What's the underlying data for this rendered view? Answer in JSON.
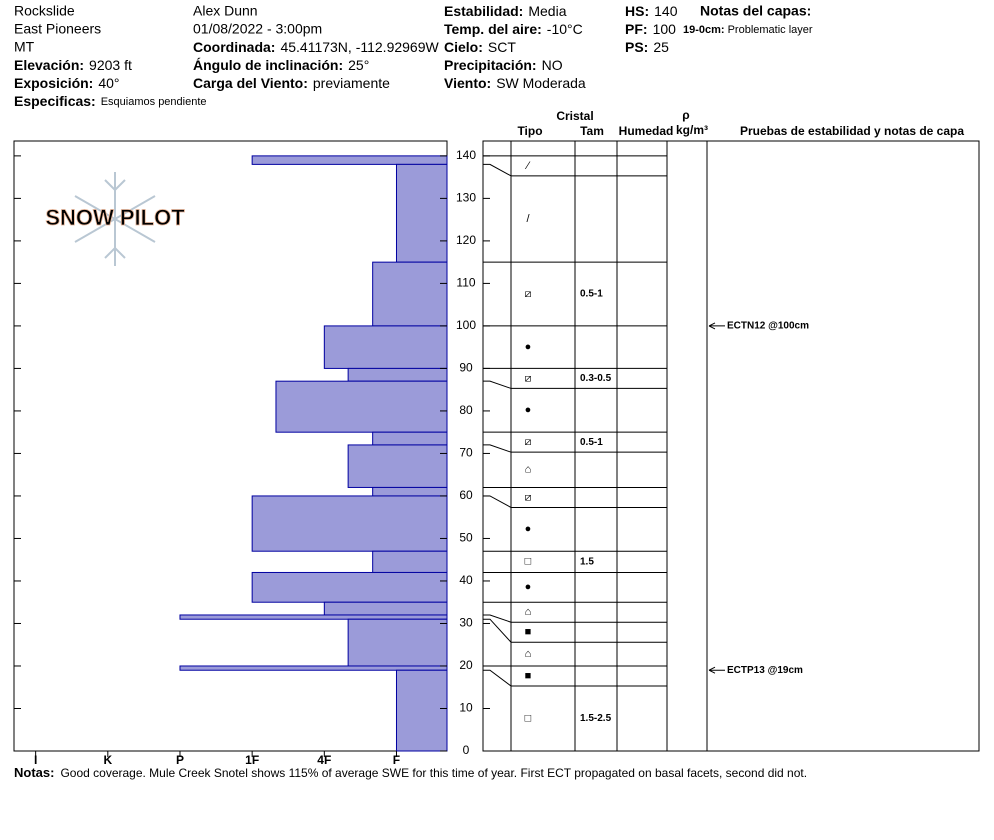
{
  "header": {
    "lines": [
      "Rockslide",
      "East Pioneers",
      "MT",
      "Alex Dunn",
      "01/08/2022 - 3:00pm"
    ],
    "fields": [
      {
        "label": "Elevación:",
        "value": "9203 ft"
      },
      {
        "label": "Exposición:",
        "value": "40°"
      },
      {
        "label": "Especificas:",
        "value": "Esquiamos pendiente"
      },
      {
        "label": "Coordinada:",
        "value": "45.41173N, -112.92969W"
      },
      {
        "label": "Ángulo de inclinación:",
        "value": "25°"
      },
      {
        "label": "Carga del Viento:",
        "value": "previamente"
      },
      {
        "label": "Estabilidad:",
        "value": "Media"
      },
      {
        "label": "Temp. del aire:",
        "value": "-10°C"
      },
      {
        "label": "Cielo:",
        "value": "SCT"
      },
      {
        "label": "Precipitación:",
        "value": "NO"
      },
      {
        "label": "Viento:",
        "value": "SW Moderada"
      },
      {
        "label": "HS:",
        "value": 140
      },
      {
        "label": "PF:",
        "value": 100
      },
      {
        "label": "PS:",
        "value": 25
      }
    ],
    "layer_notes_title": "Notas del capas:",
    "layer_notes": [
      {
        "label": "19-0cm:",
        "value": "Problematic layer"
      }
    ]
  },
  "logo": "SNOW PILOT",
  "notes": {
    "label": "Notas:",
    "value": "Good coverage. Mule Creek Snotel shows 115% of average SWE for this time of year. First ECT propagated on basal facets, second did not."
  },
  "chart_data": {
    "type": "snow-profile",
    "columns": {
      "crystal": "Cristal",
      "type": "Tipo",
      "size": "Tam",
      "moisture": "Humedad",
      "density": "ρ",
      "density_unit": "kg/m³",
      "tests": "Pruebas de estabilidad y notas de capa"
    },
    "ylim": [
      0,
      143.5
    ],
    "yticks": [
      0,
      10,
      20,
      30,
      40,
      50,
      60,
      70,
      80,
      90,
      100,
      110,
      120,
      130,
      140
    ],
    "xlim": [
      6.3,
      0.3
    ],
    "xticks": [
      {
        "value": 6,
        "label": "I"
      },
      {
        "value": 5,
        "label": "K"
      },
      {
        "value": 4,
        "label": "P"
      },
      {
        "value": 3,
        "label": "1F"
      },
      {
        "value": 2,
        "label": "4F"
      },
      {
        "value": 1,
        "label": "F"
      }
    ],
    "color": "#9b9bd9",
    "layers": {
      "top": [
        140,
        138,
        115,
        100,
        90,
        87,
        75,
        72,
        62,
        60,
        47,
        42,
        35,
        32,
        31,
        20,
        19
      ],
      "bottom": [
        138,
        115,
        100,
        90,
        87,
        75,
        72,
        62,
        60,
        47,
        42,
        35,
        32,
        31,
        20,
        19,
        0
      ],
      "hardness": [
        3,
        1,
        1.33,
        2,
        1.67,
        2.67,
        1.33,
        1.67,
        1.33,
        3,
        1.33,
        3,
        2,
        4,
        1.67,
        4,
        1
      ],
      "grain": [
        "⁄",
        "/",
        "⧄",
        "●",
        "⧄",
        "●",
        "⧄",
        "⌂",
        "⧄",
        "●",
        "□",
        "●",
        "⌂",
        "■",
        "⌂",
        "■",
        "□"
      ],
      "size": [
        null,
        null,
        "0.5-1",
        null,
        "0.3-0.5",
        null,
        "0.5-1",
        null,
        null,
        null,
        "1.5",
        null,
        null,
        null,
        null,
        null,
        "1.5-2.5"
      ]
    },
    "tests": [
      {
        "height": 100,
        "label": "ECTN12 @100cm"
      },
      {
        "height": 19,
        "label": "ECTP13 @19cm"
      }
    ]
  }
}
